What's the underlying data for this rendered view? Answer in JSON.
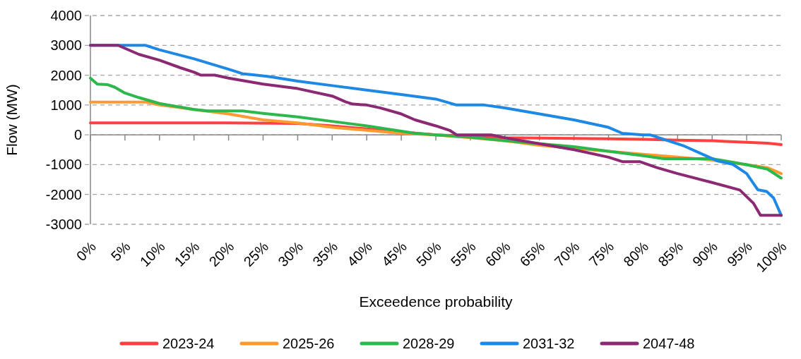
{
  "chart_data": {
    "type": "line",
    "xlabel": "Exceedence probability",
    "ylabel": "Flow (MW)",
    "xlim": [
      0,
      100
    ],
    "ylim": [
      -3000,
      4000
    ],
    "xticks": [
      {
        "value": 0,
        "label": "0%"
      },
      {
        "value": 5,
        "label": "5%"
      },
      {
        "value": 10,
        "label": "10%"
      },
      {
        "value": 15,
        "label": "15%"
      },
      {
        "value": 20,
        "label": "20%"
      },
      {
        "value": 25,
        "label": "25%"
      },
      {
        "value": 30,
        "label": "30%"
      },
      {
        "value": 35,
        "label": "35%"
      },
      {
        "value": 40,
        "label": "40%"
      },
      {
        "value": 45,
        "label": "45%"
      },
      {
        "value": 50,
        "label": "50%"
      },
      {
        "value": 55,
        "label": "55%"
      },
      {
        "value": 60,
        "label": "60%"
      },
      {
        "value": 65,
        "label": "65%"
      },
      {
        "value": 70,
        "label": "70%"
      },
      {
        "value": 75,
        "label": "75%"
      },
      {
        "value": 80,
        "label": "80%"
      },
      {
        "value": 85,
        "label": "85%"
      },
      {
        "value": 90,
        "label": "90%"
      },
      {
        "value": 95,
        "label": "95%"
      },
      {
        "value": 100,
        "label": "100%"
      }
    ],
    "yticks": [
      -3000,
      -2000,
      -1000,
      0,
      1000,
      2000,
      3000,
      4000
    ],
    "grid": "y",
    "legend": "bottom",
    "marker": "none",
    "line_style": "solid",
    "series": [
      {
        "name": "2023-24",
        "color": "#ff4040",
        "x": [
          0,
          10,
          20,
          30,
          35,
          40,
          45,
          50,
          55,
          60,
          70,
          75,
          80,
          85,
          90,
          95,
          98,
          100
        ],
        "values": [
          400,
          400,
          400,
          380,
          300,
          200,
          100,
          0,
          -50,
          -100,
          -120,
          -130,
          -150,
          -180,
          -200,
          -250,
          -280,
          -330
        ]
      },
      {
        "name": "2025-26",
        "color": "#ff9a30",
        "x": [
          0,
          8,
          10,
          15,
          20,
          25,
          30,
          35,
          40,
          45,
          50,
          55,
          60,
          65,
          70,
          75,
          80,
          85,
          90,
          95,
          98,
          100
        ],
        "values": [
          1100,
          1100,
          1000,
          850,
          700,
          500,
          400,
          250,
          150,
          50,
          0,
          -100,
          -200,
          -350,
          -450,
          -550,
          -650,
          -750,
          -850,
          -1000,
          -1100,
          -1300
        ]
      },
      {
        "name": "2028-29",
        "color": "#2db84d",
        "x": [
          0,
          1,
          2.5,
          3.5,
          5,
          7,
          10,
          15,
          17,
          22,
          25,
          30,
          35,
          40,
          45,
          47,
          50,
          55,
          60,
          65,
          70,
          75,
          80,
          83,
          90,
          95,
          98,
          100
        ],
        "values": [
          1900,
          1700,
          1680,
          1600,
          1400,
          1250,
          1050,
          850,
          800,
          800,
          720,
          600,
          450,
          300,
          120,
          50,
          0,
          -80,
          -200,
          -300,
          -400,
          -550,
          -700,
          -800,
          -800,
          -1000,
          -1150,
          -1450
        ]
      },
      {
        "name": "2031-32",
        "color": "#1e88e5",
        "x": [
          0,
          8,
          10,
          15,
          20,
          22,
          24,
          26,
          30,
          35,
          40,
          45,
          50,
          53,
          57,
          60,
          65,
          70,
          75,
          77,
          80,
          81,
          86,
          90.7,
          93,
          95,
          96.6,
          97.9,
          98.9,
          100
        ],
        "values": [
          3000,
          3000,
          2850,
          2550,
          2200,
          2050,
          2000,
          1950,
          1800,
          1650,
          1500,
          1350,
          1200,
          1000,
          1000,
          900,
          700,
          500,
          250,
          50,
          0,
          0,
          -380,
          -870,
          -990,
          -1300,
          -1840,
          -1900,
          -2120,
          -2700
        ]
      },
      {
        "name": "2047-48",
        "color": "#8b2a73",
        "x": [
          0,
          4,
          5,
          7,
          10,
          13,
          15,
          16,
          18,
          20,
          25,
          30,
          35,
          37,
          38,
          40,
          42,
          45,
          47,
          50,
          52,
          53,
          58,
          60,
          65,
          70,
          75,
          77,
          79.5,
          82,
          85,
          90,
          94,
          96,
          97,
          100
        ],
        "values": [
          3000,
          3000,
          2900,
          2700,
          2500,
          2250,
          2100,
          2000,
          2000,
          1900,
          1700,
          1550,
          1300,
          1100,
          1030,
          1000,
          900,
          700,
          500,
          300,
          150,
          0,
          0,
          -100,
          -300,
          -500,
          -750,
          -900,
          -900,
          -1100,
          -1300,
          -1600,
          -1850,
          -2300,
          -2700,
          -2700
        ]
      }
    ]
  }
}
